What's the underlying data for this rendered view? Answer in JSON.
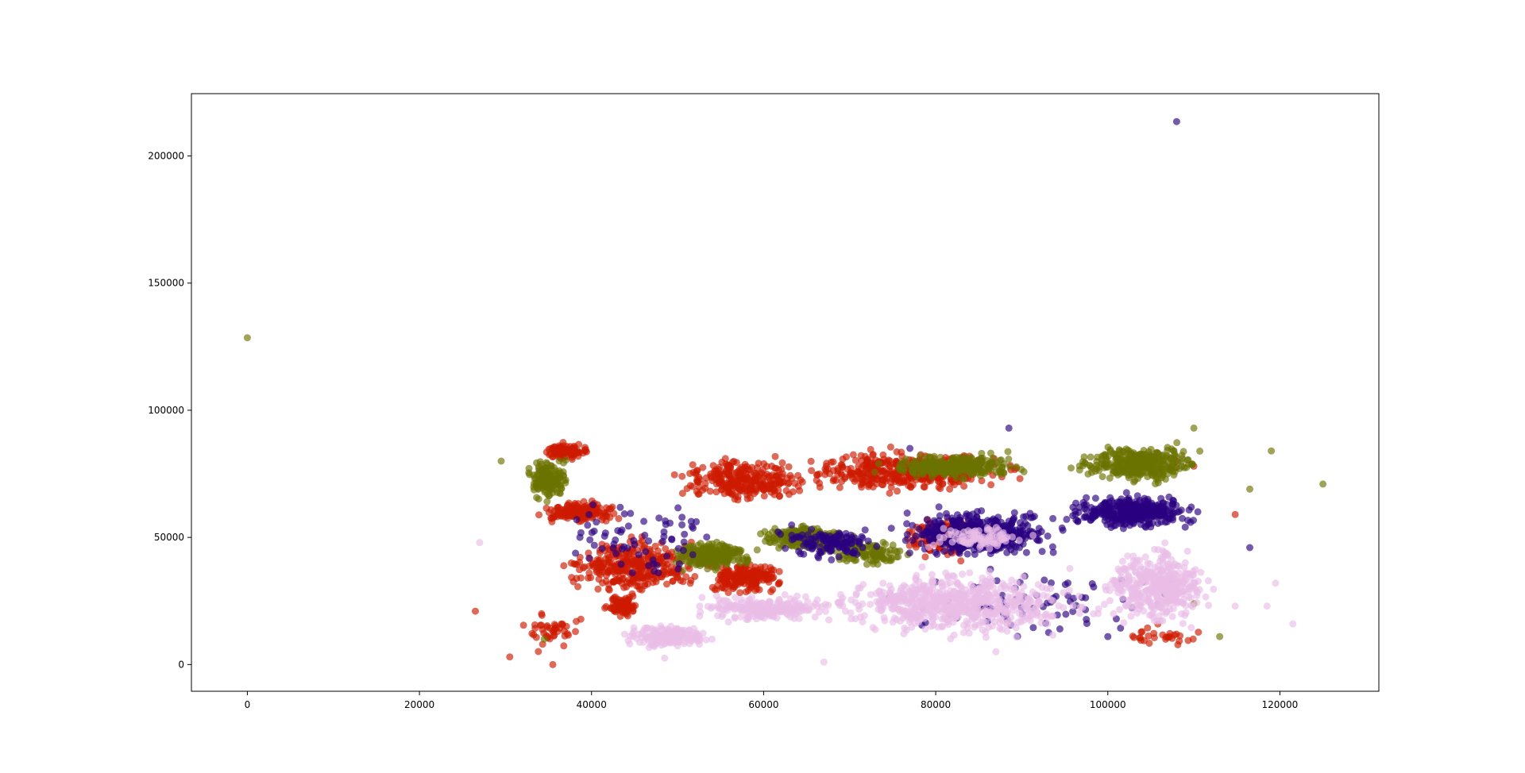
{
  "chart_data": {
    "type": "scatter",
    "title": "",
    "xlabel": "",
    "ylabel": "",
    "xlim": [
      -6500,
      131500
    ],
    "ylim": [
      -10500,
      224500
    ],
    "xticks": [
      0,
      20000,
      40000,
      60000,
      80000,
      100000,
      120000
    ],
    "yticks": [
      0,
      50000,
      100000,
      150000,
      200000
    ],
    "xtick_labels": [
      "0",
      "20000",
      "40000",
      "60000",
      "80000",
      "100000",
      "120000"
    ],
    "ytick_labels": [
      "0",
      "50000",
      "100000",
      "150000",
      "200000"
    ],
    "grid": false,
    "legend": "none",
    "marker_alpha": 0.65,
    "series": [
      {
        "color": "#cc1a00",
        "clusters": [
          {
            "x": [
              34000,
              40000
            ],
            "y": [
              80000,
              88000
            ],
            "n": 110
          },
          {
            "x": [
              33000,
              44000
            ],
            "y": [
              55000,
              65000
            ],
            "n": 160
          },
          {
            "x": [
              35000,
              55000
            ],
            "y": [
              25000,
              52000
            ],
            "n": 320
          },
          {
            "x": [
              41000,
              46000
            ],
            "y": [
              18000,
              28000
            ],
            "n": 90
          },
          {
            "x": [
              48000,
              68000
            ],
            "y": [
              62000,
              84000
            ],
            "n": 280
          },
          {
            "x": [
              52000,
              64000
            ],
            "y": [
              26000,
              42000
            ],
            "n": 190
          },
          {
            "x": [
              62000,
              92000
            ],
            "y": [
              66000,
              86000
            ],
            "n": 420
          },
          {
            "x": [
              74000,
              88000
            ],
            "y": [
              40000,
              60000
            ],
            "n": 120
          },
          {
            "x": [
              30000,
              40000
            ],
            "y": [
              5000,
              22000
            ],
            "n": 45
          },
          {
            "x": [
              98000,
              113000
            ],
            "y": [
              6000,
              16000
            ],
            "n": 30
          }
        ],
        "outliers": [
          {
            "x": 26500,
            "y": 21000
          },
          {
            "x": 35500,
            "y": 0
          },
          {
            "x": 30500,
            "y": 3000
          },
          {
            "x": 114800,
            "y": 59000
          },
          {
            "x": 110000,
            "y": 78000
          },
          {
            "x": 108000,
            "y": 80000
          }
        ]
      },
      {
        "color": "#6b7300",
        "clusters": [
          {
            "x": [
              32000,
              38000
            ],
            "y": [
              62000,
              84000
            ],
            "n": 160
          },
          {
            "x": [
              48000,
              60000
            ],
            "y": [
              36000,
              50000
            ],
            "n": 240
          },
          {
            "x": [
              58000,
              72000
            ],
            "y": [
              44000,
              56000
            ],
            "n": 220
          },
          {
            "x": [
              72000,
              92000
            ],
            "y": [
              72000,
              84000
            ],
            "n": 300
          },
          {
            "x": [
              95000,
              112000
            ],
            "y": [
              70000,
              88000
            ],
            "n": 360
          },
          {
            "x": [
              66000,
              78000
            ],
            "y": [
              38000,
              50000
            ],
            "n": 110
          }
        ],
        "outliers": [
          {
            "x": 0,
            "y": 128500
          },
          {
            "x": 125000,
            "y": 71000
          },
          {
            "x": 119000,
            "y": 84000
          },
          {
            "x": 116500,
            "y": 69000
          },
          {
            "x": 110000,
            "y": 93000
          },
          {
            "x": 29500,
            "y": 80000
          },
          {
            "x": 34500,
            "y": 10000
          },
          {
            "x": 113000,
            "y": 11000
          },
          {
            "x": 110000,
            "y": 24000
          }
        ]
      },
      {
        "color": "#2a0080",
        "clusters": [
          {
            "x": [
              74000,
              96000
            ],
            "y": [
              40000,
              62000
            ],
            "n": 520
          },
          {
            "x": [
              94000,
              112000
            ],
            "y": [
              52000,
              68000
            ],
            "n": 380
          },
          {
            "x": [
              60000,
              75000
            ],
            "y": [
              40000,
              56000
            ],
            "n": 120
          },
          {
            "x": [
              32000,
              60000
            ],
            "y": [
              30000,
              70000
            ],
            "n": 70
          },
          {
            "x": [
              70000,
              112000
            ],
            "y": [
              8000,
              40000
            ],
            "n": 80
          }
        ],
        "outliers": [
          {
            "x": 108000,
            "y": 213500
          },
          {
            "x": 116500,
            "y": 46000
          },
          {
            "x": 88500,
            "y": 93000
          },
          {
            "x": 77000,
            "y": 85000
          },
          {
            "x": 100000,
            "y": 11000
          }
        ]
      },
      {
        "color": "#e9bde6",
        "clusters": [
          {
            "x": [
              42000,
              56000
            ],
            "y": [
              6000,
              16000
            ],
            "n": 180
          },
          {
            "x": [
              50000,
              70000
            ],
            "y": [
              16000,
              28000
            ],
            "n": 220
          },
          {
            "x": [
              64000,
              100000
            ],
            "y": [
              8000,
              40000
            ],
            "n": 650
          },
          {
            "x": [
              98000,
              114000
            ],
            "y": [
              12000,
              50000
            ],
            "n": 420
          },
          {
            "x": [
              78000,
              92000
            ],
            "y": [
              44000,
              56000
            ],
            "n": 90
          }
        ],
        "outliers": [
          {
            "x": 27000,
            "y": 48000
          },
          {
            "x": 121500,
            "y": 16000
          },
          {
            "x": 119500,
            "y": 32000
          },
          {
            "x": 118500,
            "y": 23000
          },
          {
            "x": 67000,
            "y": 1000
          },
          {
            "x": 48500,
            "y": 2500
          },
          {
            "x": 114800,
            "y": 23000
          },
          {
            "x": 87000,
            "y": 5000
          }
        ]
      }
    ]
  }
}
